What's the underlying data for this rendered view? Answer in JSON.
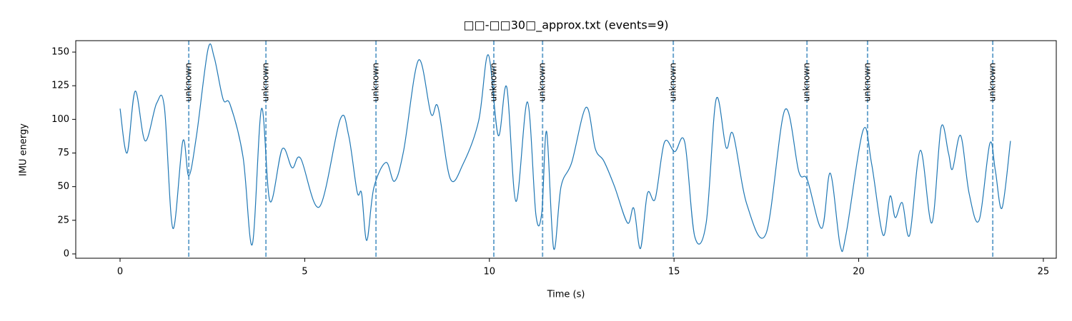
{
  "chart_data": {
    "type": "line",
    "title": "□□-□□30□_approx.txt  (events=9)",
    "x_label": "Time (s)",
    "y_label": "IMU energy",
    "xlim": [
      -1.2,
      25.35
    ],
    "ylim": [
      -3.2,
      158.5
    ],
    "xticks": [
      0,
      5,
      10,
      15,
      20,
      25
    ],
    "yticks": [
      0,
      25,
      50,
      75,
      100,
      125,
      150
    ],
    "grid": false,
    "x": [
      0,
      0.19,
      0.41,
      0.68,
      0.99,
      1.2,
      1.43,
      1.7,
      1.86,
      2.07,
      2.38,
      2.55,
      2.79,
      2.98,
      3.33,
      3.58,
      3.83,
      4.06,
      4.39,
      4.66,
      4.89,
      5.4,
      5.96,
      6.19,
      6.42,
      6.54,
      6.68,
      6.87,
      7.2,
      7.43,
      7.68,
      8.08,
      8.42,
      8.61,
      8.94,
      9.29,
      9.71,
      9.97,
      10.24,
      10.47,
      10.72,
      11.03,
      11.26,
      11.42,
      11.55,
      11.74,
      11.94,
      12.23,
      12.62,
      12.87,
      13.1,
      13.39,
      13.74,
      13.91,
      14.09,
      14.28,
      14.49,
      14.74,
      15.02,
      15.29,
      15.56,
      15.87,
      16.14,
      16.41,
      16.6,
      16.97,
      17.49,
      18.0,
      18.38,
      18.61,
      19.0,
      19.23,
      19.5,
      19.66,
      20.12,
      20.35,
      20.66,
      20.85,
      20.99,
      21.18,
      21.38,
      21.67,
      21.98,
      22.23,
      22.43,
      22.54,
      22.76,
      22.99,
      23.26,
      23.55,
      23.7,
      23.88,
      24.11
    ],
    "series": [
      {
        "color": "#1f77b4",
        "values": [
          108,
          75,
          121,
          84,
          112,
          109,
          19,
          84,
          58,
          88,
          152,
          146,
          115,
          111,
          72,
          7,
          108,
          39,
          78,
          64,
          71,
          35,
          100,
          88,
          46,
          45,
          10,
          49,
          68,
          54,
          77,
          144,
          104,
          109,
          56,
          67,
          99,
          148,
          88,
          124,
          39,
          113,
          29,
          31,
          91,
          4,
          50,
          68,
          109,
          78,
          69,
          50,
          23,
          34,
          4,
          45,
          41,
          83,
          76,
          83,
          13,
          23,
          115,
          79,
          89,
          37,
          15,
          107,
          61,
          55,
          19,
          60,
          6,
          15,
          92,
          67,
          14,
          43,
          27,
          38,
          14,
          77,
          23,
          94,
          75,
          63,
          88,
          45,
          25,
          82,
          62,
          34,
          84
        ]
      }
    ],
    "events": [
      1.86,
      3.95,
      6.93,
      10.12,
      11.44,
      14.98,
      18.6,
      20.24,
      23.63
    ],
    "event_labels": [
      "unknown",
      "unknown",
      "unknown",
      "unknown",
      "unknown",
      "unknown",
      "unknown",
      "unknown",
      "unknown"
    ],
    "event_color": "#1f77b4"
  }
}
